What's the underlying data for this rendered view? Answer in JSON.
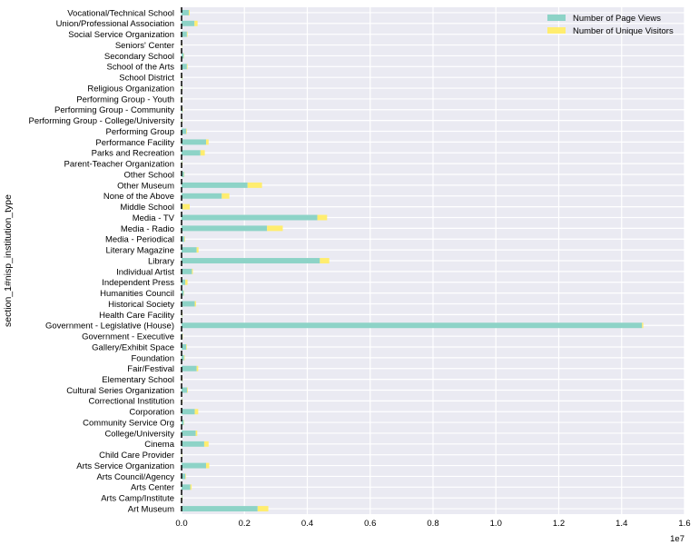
{
  "chart_data": {
    "type": "bar",
    "orientation": "horizontal",
    "stacked": true,
    "ylabel": "section_1#nisp_institution_type",
    "xlabel": "",
    "offset_label": "1e7",
    "xlim": [
      0,
      1.6
    ],
    "xticks": [
      "0.0",
      "0.2",
      "0.4",
      "0.6",
      "0.8",
      "1.0",
      "1.2",
      "1.4",
      "1.6"
    ],
    "grid": true,
    "legend_position": "top-right",
    "categories": [
      "Art Museum",
      "Arts Camp/Institute",
      "Arts Center",
      "Arts Council/Agency",
      "Arts Service Organization",
      "Child Care Provider",
      "Cinema",
      "College/University",
      "Community Service Org",
      "Corporation",
      "Correctional Institution",
      "Cultural Series Organization",
      "Elementary School",
      "Fair/Festival",
      "Foundation",
      "Gallery/Exhibit Space",
      "Government - Executive",
      "Government - Legislative (House)",
      "Health Care Facility",
      "Historical Society",
      "Humanities Council",
      "Independent Press",
      "Individual Artist",
      "Library",
      "Literary Magazine",
      "Media - Periodical",
      "Media - Radio",
      "Media - TV",
      "Middle School",
      "None of the Above",
      "Other Museum",
      "Other School",
      "Parent-Teacher Organization",
      "Parks and Recreation",
      "Performance Facility",
      "Performing Group",
      "Performing Group - College/University",
      "Performing Group - Community",
      "Performing Group - Youth",
      "Religious Organization",
      "School District",
      "School of the Arts",
      "Secondary School",
      "Seniors' Center",
      "Social Service Organization",
      "Union/Professional Association",
      "Vocational/Technical School"
    ],
    "series": [
      {
        "name": "Number of Page Views",
        "color": "#8dd3c7",
        "values": [
          0.242,
          0.002,
          0.028,
          0.012,
          0.078,
          0.001,
          0.072,
          0.045,
          0.007,
          0.042,
          0.002,
          0.018,
          0.002,
          0.048,
          0.008,
          0.015,
          0.003,
          1.465,
          0.002,
          0.042,
          0.007,
          0.012,
          0.033,
          0.44,
          0.048,
          0.009,
          0.272,
          0.432,
          0.003,
          0.128,
          0.21,
          0.008,
          0.002,
          0.06,
          0.078,
          0.015,
          0.002,
          0.003,
          0.002,
          0.002,
          0.002,
          0.017,
          0.007,
          0.001,
          0.017,
          0.041,
          0.023
        ]
      },
      {
        "name": "Number of Unique Visitors",
        "color": "#ffed6f",
        "values": [
          0.034,
          0.001,
          0.004,
          0.002,
          0.01,
          0.001,
          0.014,
          0.005,
          0.001,
          0.011,
          0.001,
          0.002,
          0.001,
          0.005,
          0.002,
          0.002,
          0.001,
          0.004,
          0.001,
          0.004,
          0.001,
          0.007,
          0.003,
          0.03,
          0.006,
          0.002,
          0.05,
          0.031,
          0.023,
          0.024,
          0.046,
          0.001,
          0.001,
          0.014,
          0.008,
          0.002,
          0.001,
          0.001,
          0.001,
          0.001,
          0.001,
          0.002,
          0.001,
          0.001,
          0.002,
          0.01,
          0.003
        ]
      }
    ]
  }
}
